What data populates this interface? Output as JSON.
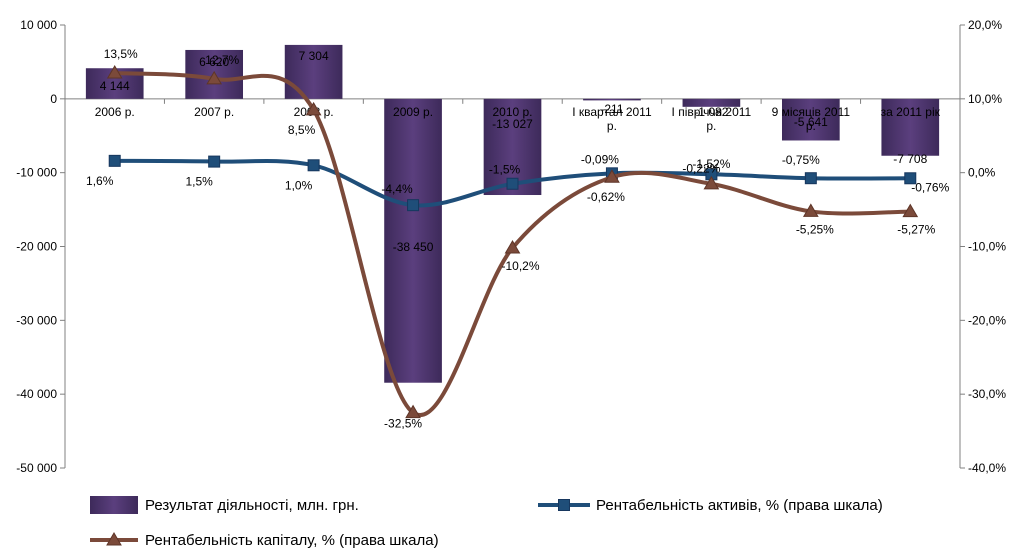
{
  "chart_data": {
    "type": "bar+line",
    "categories": [
      "2006 р.",
      "2007 р.",
      "2008 р.",
      "2009 р.",
      "2010 р.",
      "І квартал 2011 р.",
      "І півріччя 2011 р.",
      "9 місяців 2011 р.",
      "за 2011 рік"
    ],
    "bar_series": {
      "name": "Результат діяльності, млн. грн.",
      "values": [
        4144,
        6620,
        7304,
        -38450,
        -13027,
        -211,
        -1082,
        -5641,
        -7708
      ],
      "labels": [
        "4 144",
        "6 620",
        "7 304",
        "-38 450",
        "-13 027",
        "-211",
        "-1 082",
        "-5 641",
        "-7 708"
      ],
      "color": "#5b3f7e"
    },
    "line_series": [
      {
        "name": "Рентабельність активів, % (права шкала)",
        "values": [
          1.6,
          1.5,
          1.0,
          -4.4,
          -1.5,
          -0.09,
          -0.22,
          -0.75,
          -0.76
        ],
        "labels": [
          "1,6%",
          "1,5%",
          "1,0%",
          "-4,4%",
          "-1,5%",
          "-0,09%",
          "-0,22%",
          "-0,75%",
          "-0,76%"
        ],
        "color": "#1f4e79",
        "marker": "square"
      },
      {
        "name": "Рентабельність капіталу, % (права шкала)",
        "values": [
          13.5,
          12.7,
          8.5,
          -32.5,
          -10.2,
          -0.62,
          -1.52,
          -5.25,
          -5.27
        ],
        "labels": [
          "13,5%",
          "12,7%",
          "8,5%",
          "-32,5%",
          "-10,2%",
          "-0,62%",
          "-1,52%",
          "-5,25%",
          "-5,27%"
        ],
        "color": "#7b4a3a",
        "marker": "triangle"
      }
    ],
    "y_left": {
      "min": -50000,
      "max": 10000,
      "ticks": [
        10000,
        0,
        -10000,
        -20000,
        -30000,
        -40000,
        -50000
      ],
      "tick_labels": [
        "10 000",
        "0",
        "-10 000",
        "-20 000",
        "-30 000",
        "-40 000",
        "-50 000"
      ]
    },
    "y_right": {
      "min": -40,
      "max": 20,
      "ticks": [
        20,
        10,
        0,
        -10,
        -20,
        -30,
        -40
      ],
      "tick_labels": [
        "20,0%",
        "10,0%",
        "0,0%",
        "-10,0%",
        "-20,0%",
        "-30,0%",
        "-40,0%"
      ]
    },
    "grid": false,
    "legend_position": "bottom"
  }
}
